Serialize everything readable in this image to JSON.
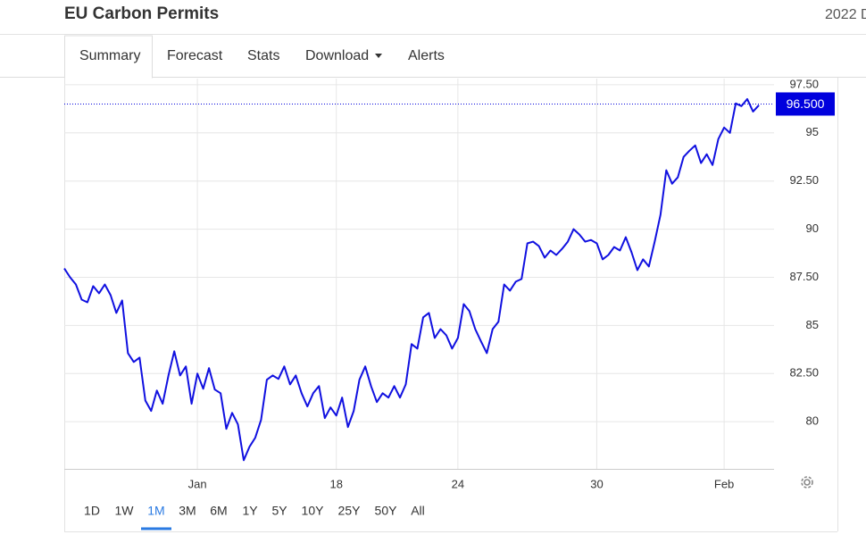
{
  "header": {
    "title": "EU Carbon Permits",
    "right_text": "2022 D"
  },
  "tabs": {
    "items": [
      "Summary",
      "Forecast",
      "Stats",
      "Download",
      "Alerts"
    ],
    "active": "Summary"
  },
  "ranges": {
    "items": [
      "1D",
      "1W",
      "1M",
      "3M",
      "6M",
      "1Y",
      "5Y",
      "10Y",
      "25Y",
      "50Y",
      "All"
    ],
    "active": "1M"
  },
  "chart_data": {
    "type": "line",
    "categories": [
      null,
      null,
      null,
      null,
      null,
      null,
      null,
      null,
      null,
      null,
      null,
      null,
      null,
      null,
      null,
      null,
      null,
      null,
      null,
      null,
      null,
      null,
      null,
      "Jan",
      null,
      null,
      null,
      null,
      null,
      null,
      null,
      null,
      null,
      null,
      null,
      null,
      null,
      null,
      null,
      null,
      null,
      null,
      null,
      null,
      null,
      null,
      null,
      "18",
      null,
      null,
      null,
      null,
      null,
      null,
      null,
      null,
      null,
      null,
      null,
      null,
      null,
      null,
      null,
      null,
      null,
      null,
      null,
      null,
      "24",
      null,
      null,
      null,
      null,
      null,
      null,
      null,
      null,
      null,
      null,
      null,
      null,
      null,
      null,
      null,
      null,
      null,
      null,
      null,
      null,
      null,
      null,
      null,
      "30",
      null,
      null,
      null,
      null,
      null,
      null,
      null,
      null,
      null,
      null,
      null,
      null,
      null,
      null,
      null,
      null,
      null,
      null,
      null,
      null,
      null,
      "Feb",
      null,
      null,
      null,
      null,
      null,
      null
    ],
    "series": [
      {
        "color": "#1010e0",
        "values": [
          87.96,
          87.5,
          87.13,
          86.34,
          86.2,
          87.04,
          86.67,
          87.13,
          86.57,
          85.65,
          86.3,
          83.56,
          83.1,
          83.33,
          81.1,
          80.56,
          81.62,
          80.93,
          82.4,
          83.66,
          82.4,
          82.87,
          80.93,
          82.5,
          81.71,
          82.78,
          81.67,
          81.48,
          79.63,
          80.46,
          79.86,
          78.0,
          78.7,
          79.17,
          80.09,
          82.18,
          82.4,
          82.22,
          82.87,
          81.94,
          82.4,
          81.48,
          80.79,
          81.48,
          81.85,
          80.19,
          80.74,
          80.32,
          81.25,
          79.72,
          80.56,
          82.18,
          82.87,
          81.85,
          81.02,
          81.48,
          81.25,
          81.85,
          81.25,
          81.94,
          84.03,
          83.8,
          85.42,
          85.65,
          84.35,
          84.81,
          84.49,
          83.8,
          84.35,
          86.11,
          85.74,
          84.81,
          84.17,
          83.56,
          84.81,
          85.19,
          87.13,
          86.81,
          87.27,
          87.41,
          89.26,
          89.35,
          89.12,
          88.52,
          88.89,
          88.66,
          88.98,
          89.35,
          90.0,
          89.72,
          89.35,
          89.44,
          89.26,
          88.43,
          88.66,
          89.07,
          88.89,
          89.58,
          88.8,
          87.87,
          88.43,
          88.06,
          89.35,
          90.74,
          93.06,
          92.36,
          92.69,
          93.75,
          94.07,
          94.35,
          93.43,
          93.89,
          93.33,
          94.68,
          95.28,
          95.0,
          96.53,
          96.39,
          96.76,
          96.11,
          96.44
        ]
      }
    ],
    "ylim": [
      77.55,
      97.82
    ],
    "yticks": [
      80,
      {
        "value": 82.5,
        "label": "82.50"
      },
      85,
      {
        "value": 87.5,
        "label": "87.50"
      },
      90,
      {
        "value": 92.5,
        "label": "92.50"
      },
      95,
      {
        "value": 97.5,
        "label": "97.50"
      }
    ],
    "grid": true,
    "marker": {
      "value": 96.5,
      "label": "96.500",
      "color": "#0000dd"
    }
  }
}
